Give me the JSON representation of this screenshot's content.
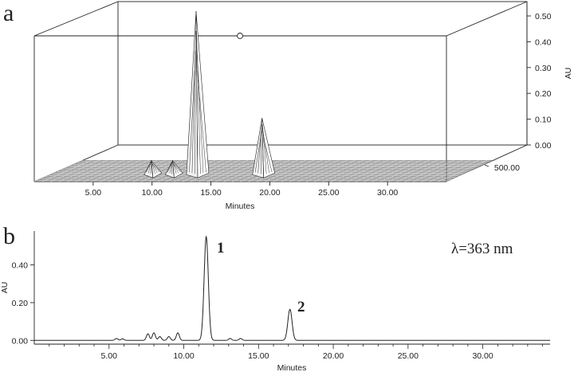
{
  "colors": {
    "line": "#222222",
    "surface_light": "#f2f2f2",
    "surface_dark": "#9a9a9a",
    "background": "#ffffff"
  },
  "chart_data": [
    {
      "panel": "a",
      "type": "surface3d",
      "x": {
        "label": "Minutes",
        "ticks": [
          "5.00",
          "10.00",
          "15.00",
          "20.00",
          "25.00",
          "30.00"
        ],
        "range": [
          0,
          35
        ]
      },
      "y": {
        "label": "AU",
        "ticks": [
          "0.00",
          "0.10",
          "0.20",
          "0.30",
          "0.40",
          "0.50"
        ],
        "range": [
          0,
          0.55
        ]
      },
      "z": {
        "ticks": [
          "500.00"
        ]
      },
      "peaks": [
        {
          "x": 11.6,
          "height": 0.52
        },
        {
          "x": 17.2,
          "height": 0.17
        },
        {
          "x": 7.8,
          "height": 0.03
        },
        {
          "x": 9.6,
          "height": 0.03
        }
      ]
    },
    {
      "panel": "b",
      "type": "line",
      "annotation": "λ=363 nm",
      "x": {
        "label": "Minutes",
        "ticks": [
          "5.00",
          "10.00",
          "15.00",
          "20.00",
          "25.00",
          "30.00"
        ],
        "range": [
          0,
          34.5
        ]
      },
      "y": {
        "label": "AU",
        "ticks": [
          "0.00",
          "0.20",
          "0.40"
        ],
        "range": [
          -0.02,
          0.58
        ]
      },
      "peaks": [
        {
          "label": "1",
          "x": 11.5,
          "y": 0.55
        },
        {
          "label": "2",
          "x": 17.1,
          "y": 0.165
        }
      ],
      "minor_peaks": [
        {
          "x": 5.5,
          "y": 0.01
        },
        {
          "x": 5.9,
          "y": 0.008
        },
        {
          "x": 7.6,
          "y": 0.035
        },
        {
          "x": 8.0,
          "y": 0.04
        },
        {
          "x": 8.4,
          "y": 0.02
        },
        {
          "x": 9.0,
          "y": 0.02
        },
        {
          "x": 9.6,
          "y": 0.04
        },
        {
          "x": 13.1,
          "y": 0.01
        },
        {
          "x": 13.8,
          "y": 0.01
        }
      ]
    }
  ]
}
